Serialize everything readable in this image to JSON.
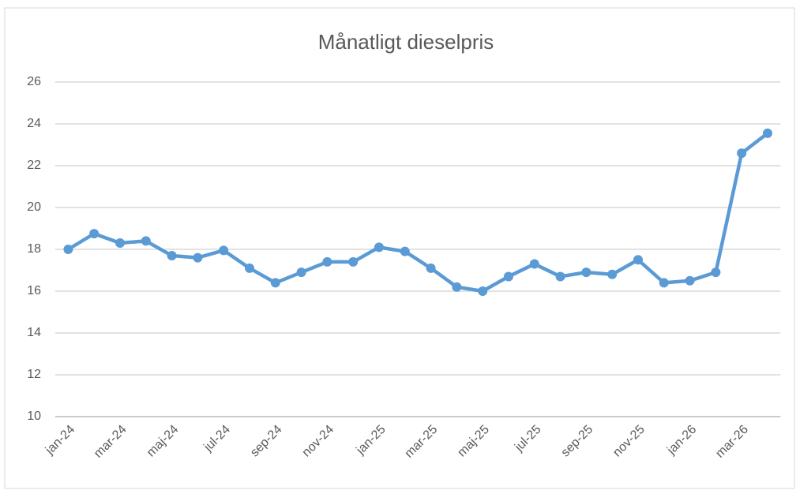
{
  "chart_data": {
    "type": "line",
    "title": "Månatligt dieselpris",
    "categories": [
      "jan-24",
      null,
      "mar-24",
      null,
      "maj-24",
      null,
      "jul-24",
      null,
      "sep-24",
      null,
      "nov-24",
      null,
      "jan-25",
      null,
      "mar-25",
      null,
      "maj-25",
      null,
      "jul-25",
      null,
      "sep-25",
      null,
      "nov-25",
      null,
      "jan-26",
      null,
      "mar-26",
      null
    ],
    "values": [
      18.0,
      18.75,
      18.3,
      18.4,
      17.7,
      17.6,
      17.95,
      17.1,
      16.4,
      16.9,
      17.4,
      17.4,
      18.1,
      17.9,
      17.1,
      16.2,
      16.0,
      16.7,
      17.3,
      16.7,
      16.9,
      16.8,
      17.5,
      16.4,
      16.5,
      16.9,
      22.6,
      23.55
    ],
    "color": "#5b9bd5",
    "ylim": [
      10,
      26
    ],
    "yticks": [
      10,
      12,
      14,
      16,
      18,
      20,
      22,
      24,
      26
    ],
    "grid": true
  }
}
